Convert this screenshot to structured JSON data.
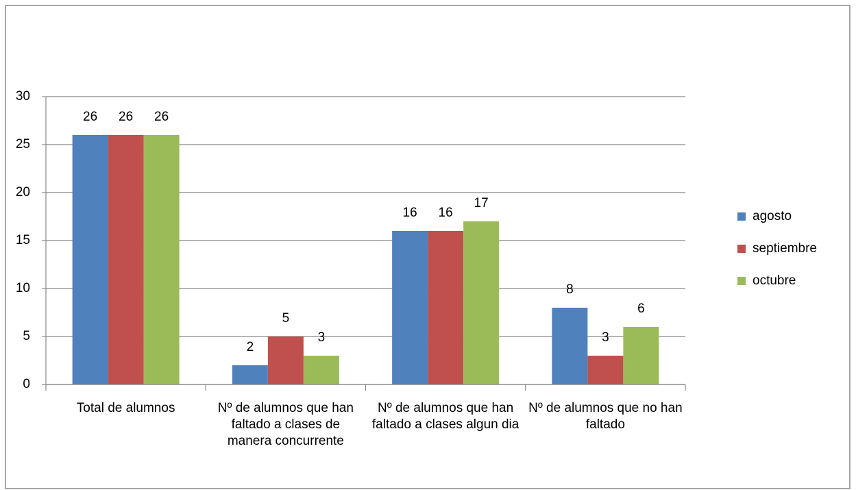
{
  "chart_data": {
    "type": "bar",
    "categories": [
      "Total de alumnos",
      "Nº de alumnos que han faltado  a clases de manera concurrente",
      "Nº de alumnos que han faltado  a clases algun dia",
      "Nº de alumnos  que no han faltado"
    ],
    "series": [
      {
        "name": "agosto",
        "color": "#4f81bd",
        "values": [
          26,
          2,
          16,
          8
        ]
      },
      {
        "name": "septiembre",
        "color": "#c0504d",
        "values": [
          26,
          5,
          16,
          3
        ]
      },
      {
        "name": "octubre",
        "color": "#9bbb59",
        "values": [
          26,
          3,
          17,
          6
        ]
      }
    ],
    "ylim": [
      0,
      30
    ],
    "yticks": [
      0,
      5,
      10,
      15,
      20,
      25,
      30
    ],
    "grid": true,
    "legend": "right"
  }
}
